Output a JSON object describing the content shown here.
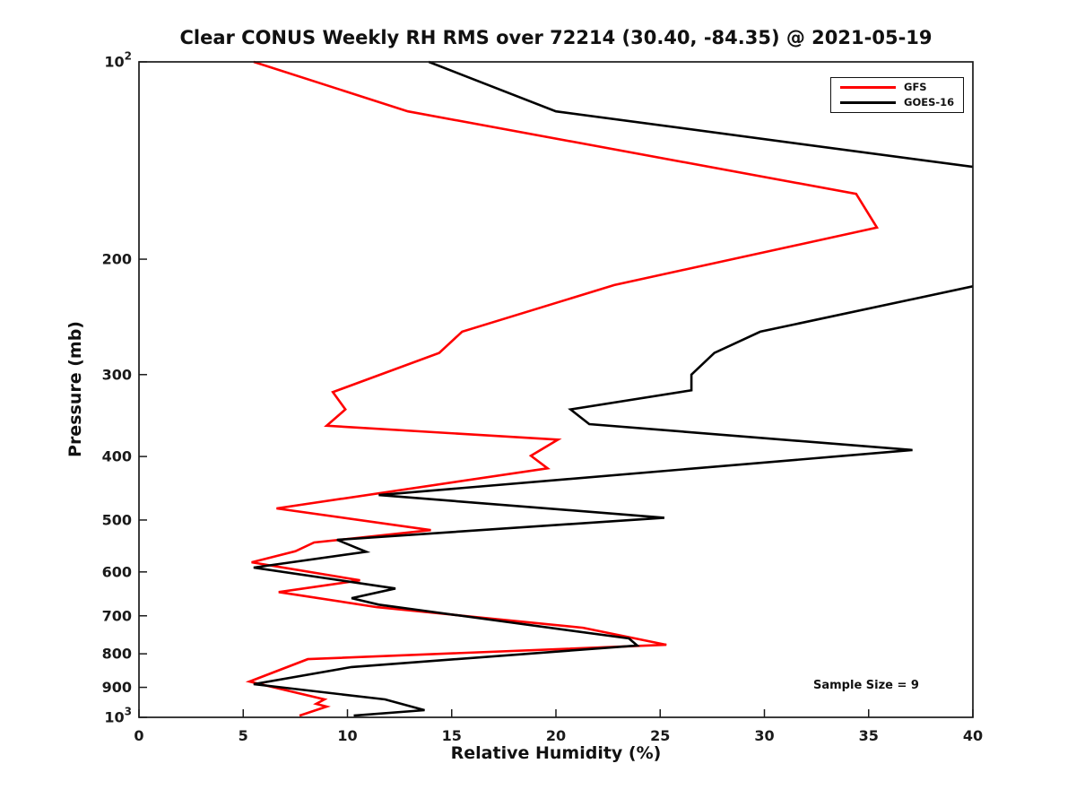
{
  "chart_data": {
    "type": "line",
    "title": "Clear CONUS Weekly RH RMS over 72214 (30.40, -84.35) @ 2021-05-19",
    "xlabel": "Relative Humidity (%)",
    "ylabel": "Pressure (mb)",
    "annotation": "Sample Size = 9",
    "xlim": [
      0,
      40
    ],
    "x_ticks": [
      0,
      5,
      10,
      15,
      20,
      25,
      30,
      35,
      40
    ],
    "ylim": [
      100,
      1000
    ],
    "y_scale": "log",
    "y_inverted": true,
    "y_ticks": [
      {
        "value": 100,
        "base": "10",
        "exp": "2"
      },
      {
        "value": 200,
        "label": "200"
      },
      {
        "value": 300,
        "label": "300"
      },
      {
        "value": 400,
        "label": "400"
      },
      {
        "value": 500,
        "label": "500"
      },
      {
        "value": 600,
        "label": "600"
      },
      {
        "value": 700,
        "label": "700"
      },
      {
        "value": 800,
        "label": "800"
      },
      {
        "value": 900,
        "label": "900"
      },
      {
        "value": 1000,
        "base": "10",
        "exp": "3"
      }
    ],
    "grid": false,
    "legend_position": "upper-right",
    "series": [
      {
        "name": "GFS",
        "color": "#ff0000",
        "points_rh_pressure": [
          [
            5.5,
            100
          ],
          [
            12.9,
            119
          ],
          [
            34.4,
            159
          ],
          [
            35.4,
            179
          ],
          [
            22.8,
            219
          ],
          [
            15.5,
            258
          ],
          [
            14.4,
            278
          ],
          [
            9.3,
            319
          ],
          [
            9.9,
            339
          ],
          [
            9.0,
            359
          ],
          [
            20.1,
            377
          ],
          [
            18.8,
            399
          ],
          [
            19.6,
            417
          ],
          [
            6.6,
            480
          ],
          [
            14.0,
            518
          ],
          [
            8.4,
            541
          ],
          [
            7.5,
            558
          ],
          [
            5.4,
            580
          ],
          [
            10.6,
            618
          ],
          [
            6.7,
            644
          ],
          [
            11.4,
            679
          ],
          [
            21.3,
            730
          ],
          [
            25.3,
            775
          ],
          [
            8.1,
            815
          ],
          [
            5.3,
            882
          ],
          [
            8.9,
            939
          ],
          [
            8.5,
            954
          ],
          [
            9.0,
            963
          ],
          [
            7.7,
            994
          ]
        ]
      },
      {
        "name": "GOES-16",
        "color": "#000000",
        "points_rh_pressure": [
          [
            13.9,
            100
          ],
          [
            20.0,
            119
          ],
          [
            56.6,
            170
          ],
          [
            40.0,
            220
          ],
          [
            29.8,
            258
          ],
          [
            27.6,
            278
          ],
          [
            26.5,
            300
          ],
          [
            26.5,
            317
          ],
          [
            20.7,
            339
          ],
          [
            21.6,
            357
          ],
          [
            37.1,
            391
          ],
          [
            11.5,
            458
          ],
          [
            25.2,
            496
          ],
          [
            9.5,
            536
          ],
          [
            10.9,
            559
          ],
          [
            5.5,
            591
          ],
          [
            12.3,
            636
          ],
          [
            10.2,
            658
          ],
          [
            11.5,
            673
          ],
          [
            23.5,
            758
          ],
          [
            23.9,
            777
          ],
          [
            10.2,
            838
          ],
          [
            5.5,
            890
          ],
          [
            11.8,
            939
          ],
          [
            13.7,
            975
          ],
          [
            10.3,
            994
          ]
        ],
        "offscale_right": true
      }
    ]
  }
}
